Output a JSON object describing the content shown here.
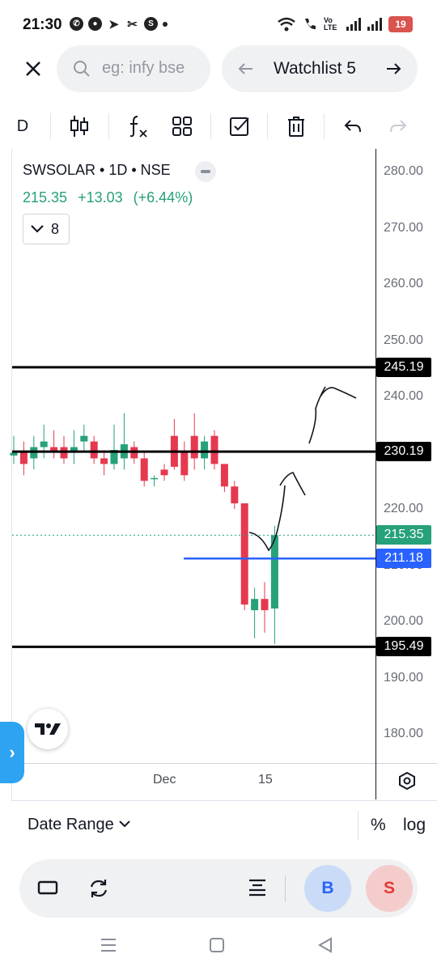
{
  "status_bar": {
    "time": "21:30",
    "battery": "19",
    "network": "Vo LTE"
  },
  "search": {
    "placeholder": "eg: infy bse"
  },
  "watchlist": {
    "label": "Watchlist 5"
  },
  "toolbar": {
    "interval": "D"
  },
  "legend": {
    "title": "SWSOLAR • 1D • NSE",
    "price": "215.35",
    "change": "+13.03",
    "change_pct": "(+6.44%)",
    "indicator_count": "8"
  },
  "price_axis": {
    "labels": [
      "280.00",
      "270.00",
      "260.00",
      "250.00",
      "240.00",
      "220.00",
      "210.00",
      "200.00",
      "190.00",
      "180.00"
    ]
  },
  "lines": {
    "line_245": "245.19",
    "line_230": "230.19",
    "line_195": "195.49",
    "alert_211": "211.18",
    "last_price": "215.35"
  },
  "time_axis": {
    "labels": [
      "Dec",
      "15"
    ]
  },
  "bottom": {
    "date_range": "Date Range",
    "percent": "%",
    "log": "log",
    "buy": "B",
    "sell": "S"
  },
  "colors": {
    "up": "#26a17a",
    "down": "#e5394f",
    "alert_line": "#2962ff",
    "level_line": "#000000"
  },
  "chart_data": {
    "type": "candlestick",
    "ylim": [
      175,
      285
    ],
    "candles": [
      {
        "o": 229.5,
        "h": 233,
        "l": 228,
        "c": 230
      },
      {
        "o": 230,
        "h": 232,
        "l": 226,
        "c": 228
      },
      {
        "o": 229,
        "h": 233,
        "l": 227,
        "c": 231
      },
      {
        "o": 231,
        "h": 235,
        "l": 229,
        "c": 232
      },
      {
        "o": 231,
        "h": 234,
        "l": 229,
        "c": 230
      },
      {
        "o": 231,
        "h": 233,
        "l": 228,
        "c": 229
      },
      {
        "o": 230,
        "h": 234,
        "l": 228,
        "c": 231
      },
      {
        "o": 232,
        "h": 235,
        "l": 230,
        "c": 233
      },
      {
        "o": 232,
        "h": 233,
        "l": 228,
        "c": 229
      },
      {
        "o": 229,
        "h": 230,
        "l": 226,
        "c": 228
      },
      {
        "o": 228,
        "h": 235,
        "l": 227,
        "c": 230.5
      },
      {
        "o": 229,
        "h": 237,
        "l": 227,
        "c": 231.5
      },
      {
        "o": 231,
        "h": 232,
        "l": 228,
        "c": 229
      },
      {
        "o": 229,
        "h": 230,
        "l": 224,
        "c": 225
      },
      {
        "o": 225.5,
        "h": 226,
        "l": 224,
        "c": 225.5
      },
      {
        "o": 227,
        "h": 228,
        "l": 225,
        "c": 226
      },
      {
        "o": 233,
        "h": 236,
        "l": 227,
        "c": 227.5
      },
      {
        "o": 230,
        "h": 232,
        "l": 225,
        "c": 226
      },
      {
        "o": 233,
        "h": 237,
        "l": 227,
        "c": 229
      },
      {
        "o": 229,
        "h": 233,
        "l": 227,
        "c": 232
      },
      {
        "o": 233,
        "h": 234,
        "l": 227,
        "c": 228
      },
      {
        "o": 228,
        "h": 228,
        "l": 223,
        "c": 224
      },
      {
        "o": 224,
        "h": 225,
        "l": 220,
        "c": 221
      },
      {
        "o": 221,
        "h": 221,
        "l": 202,
        "c": 203
      },
      {
        "o": 202,
        "h": 206,
        "l": 197,
        "c": 204
      },
      {
        "o": 204,
        "h": 207,
        "l": 198,
        "c": 202
      },
      {
        "o": 202.3,
        "h": 217,
        "l": 196,
        "c": 215.35
      }
    ]
  }
}
